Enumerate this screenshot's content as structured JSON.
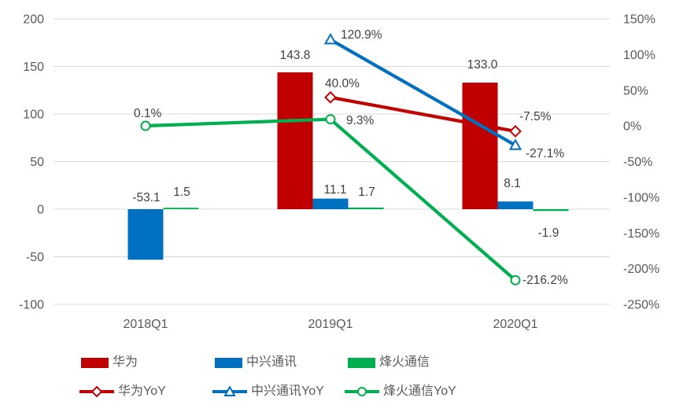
{
  "page": {
    "background": "#ffffff"
  },
  "colors": {
    "huawei_red": "#c00000",
    "zte_blue": "#0070c0",
    "fiberhome_green": "#00b050",
    "gridline": "#d9d9d9",
    "axis_text": "#595959",
    "data_label_text": "#404040",
    "marker_fill": "#ffffff"
  },
  "chart_data": {
    "type": "combo bar+line, dual y-axis",
    "categories": [
      "2018Q1",
      "2019Q1",
      "2020Q1"
    ],
    "left_axis": {
      "min": -100,
      "max": 200,
      "step": 50,
      "tick_labels": [
        "200",
        "150",
        "100",
        "50",
        "0",
        "-50",
        "-100"
      ]
    },
    "right_axis": {
      "min": -250,
      "max": 150,
      "step": 50,
      "tick_labels": [
        "150%",
        "100%",
        "50%",
        "0%",
        "-50%",
        "-100%",
        "-150%",
        "-200%",
        "-250%"
      ]
    },
    "grid": "horizontal gridlines at left-axis ticks",
    "legend_position": "bottom",
    "bar_series": [
      {
        "name": "华为",
        "color": "#c00000",
        "axis": "left",
        "values": [
          null,
          143.8,
          133.0
        ],
        "labels": [
          "",
          "143.8",
          "133.0"
        ]
      },
      {
        "name": "中兴通讯",
        "color": "#0070c0",
        "axis": "left",
        "values": [
          -53.1,
          11.1,
          8.1
        ],
        "labels": [
          "-53.1",
          "11.1",
          "8.1"
        ]
      },
      {
        "name": "烽火通信",
        "color": "#00b050",
        "axis": "left",
        "values": [
          1.5,
          1.7,
          -1.9
        ],
        "labels": [
          "1.5",
          "1.7",
          "-1.9"
        ]
      }
    ],
    "line_series": [
      {
        "name": "华为YoY",
        "color": "#c00000",
        "marker": "diamond",
        "axis": "right",
        "values": [
          null,
          40.0,
          -7.5
        ],
        "labels": [
          "",
          "40.0%",
          "-7.5%"
        ]
      },
      {
        "name": "中兴通讯YoY",
        "color": "#0070c0",
        "marker": "triangle",
        "axis": "right",
        "values": [
          null,
          120.9,
          -27.1
        ],
        "labels": [
          "",
          "120.9%",
          "-27.1%"
        ]
      },
      {
        "name": "烽火通信YoY",
        "color": "#00b050",
        "marker": "circle",
        "axis": "right",
        "values": [
          0.1,
          9.3,
          -216.2
        ],
        "labels": [
          "0.1%",
          "9.3%",
          "-216.2%"
        ]
      }
    ]
  }
}
